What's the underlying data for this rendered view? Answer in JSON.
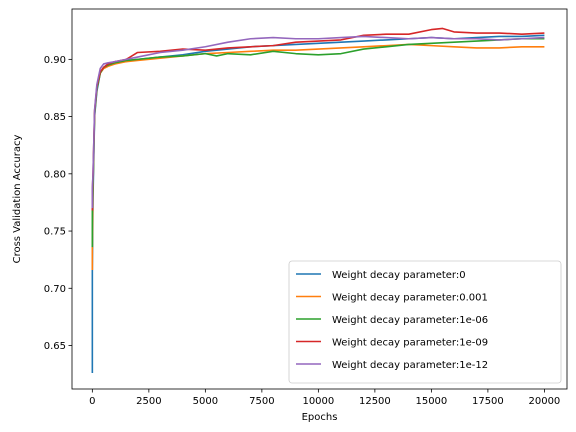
{
  "chart_data": {
    "type": "line",
    "title": "",
    "xlabel": "Epochs",
    "ylabel": "Cross Validation Accuracy",
    "xlim": [
      -900,
      21000
    ],
    "ylim": [
      0.612,
      0.944
    ],
    "xticks": [
      0,
      2500,
      5000,
      7500,
      10000,
      12500,
      15000,
      17500,
      20000
    ],
    "yticks": [
      0.65,
      0.7,
      0.75,
      0.8,
      0.85,
      0.9
    ],
    "grid": false,
    "legend_position": "lower-right",
    "series": [
      {
        "name": "Weight decay parameter:0",
        "color": "#1f77b4",
        "x": [
          0,
          0,
          30,
          100,
          200,
          350,
          500,
          700,
          1000,
          1500,
          2000,
          3000,
          4000,
          5000,
          6000,
          7000,
          8000,
          9000,
          10000,
          11000,
          12000,
          13000,
          14000,
          15000,
          16000,
          17000,
          18000,
          19000,
          20000
        ],
        "y": [
          0.626,
          0.715,
          0.78,
          0.85,
          0.872,
          0.888,
          0.893,
          0.896,
          0.898,
          0.899,
          0.9,
          0.902,
          0.904,
          0.907,
          0.909,
          0.911,
          0.912,
          0.913,
          0.914,
          0.915,
          0.916,
          0.917,
          0.918,
          0.919,
          0.918,
          0.919,
          0.92,
          0.92,
          0.921
        ]
      },
      {
        "name": "Weight decay parameter:0.001",
        "color": "#ff7f0e",
        "x": [
          0,
          0,
          30,
          100,
          200,
          350,
          500,
          700,
          1000,
          1500,
          2000,
          3000,
          4000,
          5000,
          6000,
          7000,
          8000,
          9000,
          10000,
          11000,
          12000,
          13000,
          14000,
          15000,
          16000,
          17000,
          18000,
          19000,
          20000
        ],
        "y": [
          0.716,
          0.735,
          0.79,
          0.853,
          0.875,
          0.888,
          0.892,
          0.894,
          0.896,
          0.898,
          0.899,
          0.901,
          0.903,
          0.905,
          0.906,
          0.907,
          0.908,
          0.908,
          0.909,
          0.91,
          0.911,
          0.912,
          0.913,
          0.912,
          0.911,
          0.91,
          0.91,
          0.911,
          0.911
        ]
      },
      {
        "name": "Weight decay parameter:1e-06",
        "color": "#2ca02c",
        "x": [
          0,
          0,
          30,
          100,
          200,
          350,
          500,
          700,
          1000,
          1500,
          2000,
          3000,
          4000,
          5000,
          5500,
          6000,
          7000,
          8000,
          9000,
          10000,
          11000,
          12000,
          13000,
          14000,
          15000,
          16000,
          17000,
          18000,
          19000,
          20000
        ],
        "y": [
          0.736,
          0.768,
          0.79,
          0.852,
          0.874,
          0.888,
          0.893,
          0.895,
          0.897,
          0.899,
          0.9,
          0.902,
          0.903,
          0.905,
          0.903,
          0.905,
          0.904,
          0.907,
          0.905,
          0.904,
          0.905,
          0.909,
          0.911,
          0.913,
          0.914,
          0.915,
          0.916,
          0.917,
          0.918,
          0.918
        ]
      },
      {
        "name": "Weight decay parameter:1e-09",
        "color": "#d62728",
        "x": [
          0,
          0,
          30,
          100,
          200,
          350,
          500,
          700,
          1000,
          1500,
          2000,
          3000,
          4000,
          5000,
          6000,
          7000,
          8000,
          9000,
          10000,
          11000,
          12000,
          13000,
          14000,
          15000,
          15500,
          16000,
          17000,
          18000,
          19000,
          20000
        ],
        "y": [
          0.768,
          0.785,
          0.8,
          0.855,
          0.876,
          0.889,
          0.893,
          0.896,
          0.898,
          0.9,
          0.906,
          0.907,
          0.909,
          0.908,
          0.91,
          0.911,
          0.912,
          0.915,
          0.916,
          0.917,
          0.921,
          0.922,
          0.922,
          0.926,
          0.927,
          0.924,
          0.923,
          0.923,
          0.922,
          0.923
        ]
      },
      {
        "name": "Weight decay parameter:1e-12",
        "color": "#9467bd",
        "x": [
          0,
          0,
          30,
          100,
          200,
          350,
          500,
          700,
          1000,
          1500,
          2000,
          3000,
          4000,
          5000,
          6000,
          7000,
          8000,
          9000,
          10000,
          11000,
          12000,
          13000,
          14000,
          15000,
          16000,
          17000,
          18000,
          19000,
          20000
        ],
        "y": [
          0.77,
          0.787,
          0.8,
          0.856,
          0.878,
          0.892,
          0.896,
          0.897,
          0.898,
          0.9,
          0.902,
          0.906,
          0.908,
          0.911,
          0.915,
          0.918,
          0.919,
          0.918,
          0.918,
          0.919,
          0.92,
          0.919,
          0.918,
          0.919,
          0.918,
          0.918,
          0.917,
          0.918,
          0.919
        ]
      }
    ]
  }
}
